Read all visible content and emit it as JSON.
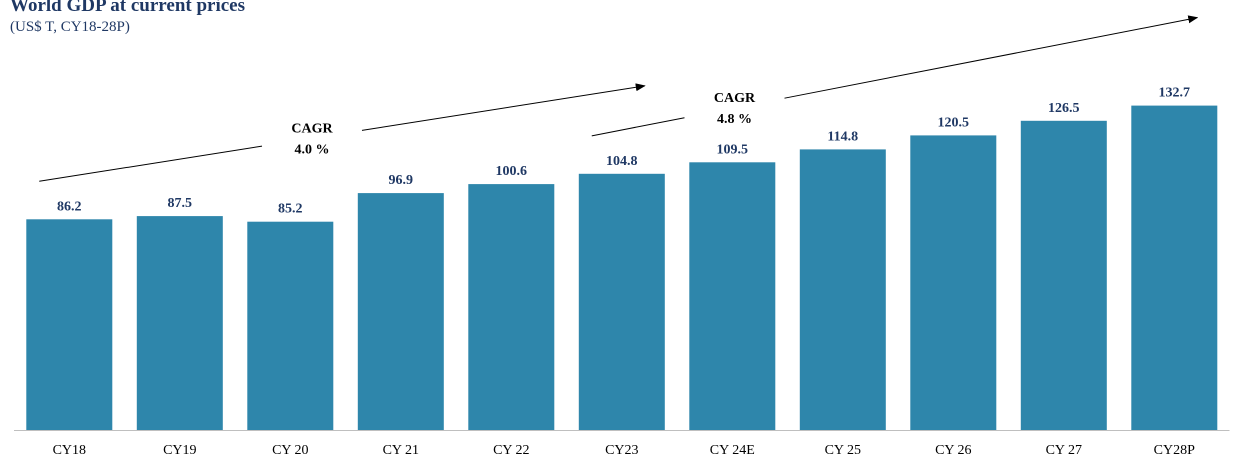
{
  "header": {
    "title": "World GDP at current prices",
    "subtitle": "(US$ T, CY18-28P)"
  },
  "colors": {
    "bar": "#2e86ab",
    "value_label": "#1f3864",
    "axis": "#bfbfbf"
  },
  "chart_data": {
    "type": "bar",
    "title": "World GDP at current prices",
    "subtitle": "(US$ T, CY18-28P)",
    "categories": [
      "CY18",
      "CY19",
      "CY 20",
      "CY 21",
      "CY 22",
      "CY23",
      "CY 24E",
      "CY 25",
      "CY 26",
      "CY 27",
      "CY28P"
    ],
    "values": [
      86.2,
      87.5,
      85.2,
      96.9,
      100.6,
      104.8,
      109.5,
      114.8,
      120.5,
      126.5,
      132.7
    ],
    "value_labels": [
      "86.2",
      "87.5",
      "85.2",
      "96.9",
      "100.6",
      "104.8",
      "109.5",
      "114.8",
      "120.5",
      "126.5",
      "132.7"
    ],
    "ylim": [
      0,
      135
    ],
    "grid": false,
    "legend": "none",
    "annotations": [
      {
        "label": "CAGR",
        "value": "4.0 %",
        "from": "CY18",
        "to": "CY23"
      },
      {
        "label": "CAGR",
        "value": "4.8 %",
        "from": "CY23",
        "to": "CY28P"
      }
    ]
  }
}
